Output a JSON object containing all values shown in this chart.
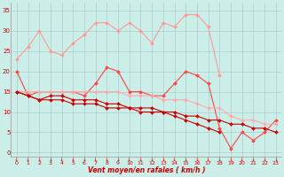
{
  "x": [
    0,
    1,
    2,
    3,
    4,
    5,
    6,
    7,
    8,
    9,
    10,
    11,
    12,
    13,
    14,
    15,
    16,
    17,
    18,
    19,
    20,
    21,
    22,
    23
  ],
  "line1": [
    23,
    26,
    30,
    25,
    24,
    27,
    29,
    32,
    32,
    30,
    32,
    30,
    27,
    32,
    31,
    34,
    34,
    31,
    19,
    null,
    null,
    null,
    null,
    null
  ],
  "line2": [
    20,
    14,
    15,
    15,
    15,
    15,
    14,
    17,
    21,
    20,
    15,
    15,
    14,
    14,
    17,
    20,
    19,
    17,
    6,
    1,
    5,
    3,
    5,
    8
  ],
  "line3": [
    15,
    15,
    15,
    15,
    15,
    15,
    15,
    15,
    15,
    15,
    14,
    14,
    14,
    13,
    13,
    13,
    12,
    11,
    11,
    9,
    8,
    8,
    7,
    7
  ],
  "line4": [
    15,
    14,
    13,
    13,
    13,
    12,
    12,
    12,
    11,
    11,
    11,
    11,
    11,
    10,
    10,
    9,
    9,
    8,
    8,
    7,
    7,
    6,
    6,
    5
  ],
  "line5": [
    15,
    14,
    13,
    14,
    14,
    13,
    13,
    13,
    12,
    12,
    11,
    10,
    10,
    10,
    9,
    8,
    7,
    6,
    5,
    null,
    null,
    null,
    null,
    null
  ],
  "bg_color": "#cceee8",
  "grid_color": "#b0cccc",
  "line1_color": "#ff9999",
  "line2_color": "#ff4444",
  "line3_color": "#ffaaaa",
  "line4_color": "#cc0000",
  "line5_color": "#cc0000",
  "xlabel": "Vent moyen/en rafales ( km/h )",
  "yticks": [
    0,
    5,
    10,
    15,
    20,
    25,
    30,
    35
  ],
  "xticks": [
    0,
    1,
    2,
    3,
    4,
    5,
    6,
    7,
    8,
    9,
    10,
    11,
    12,
    13,
    14,
    15,
    16,
    17,
    18,
    19,
    20,
    21,
    22,
    23
  ],
  "ylim": [
    -1,
    37
  ],
  "xlim": [
    -0.5,
    23.5
  ]
}
